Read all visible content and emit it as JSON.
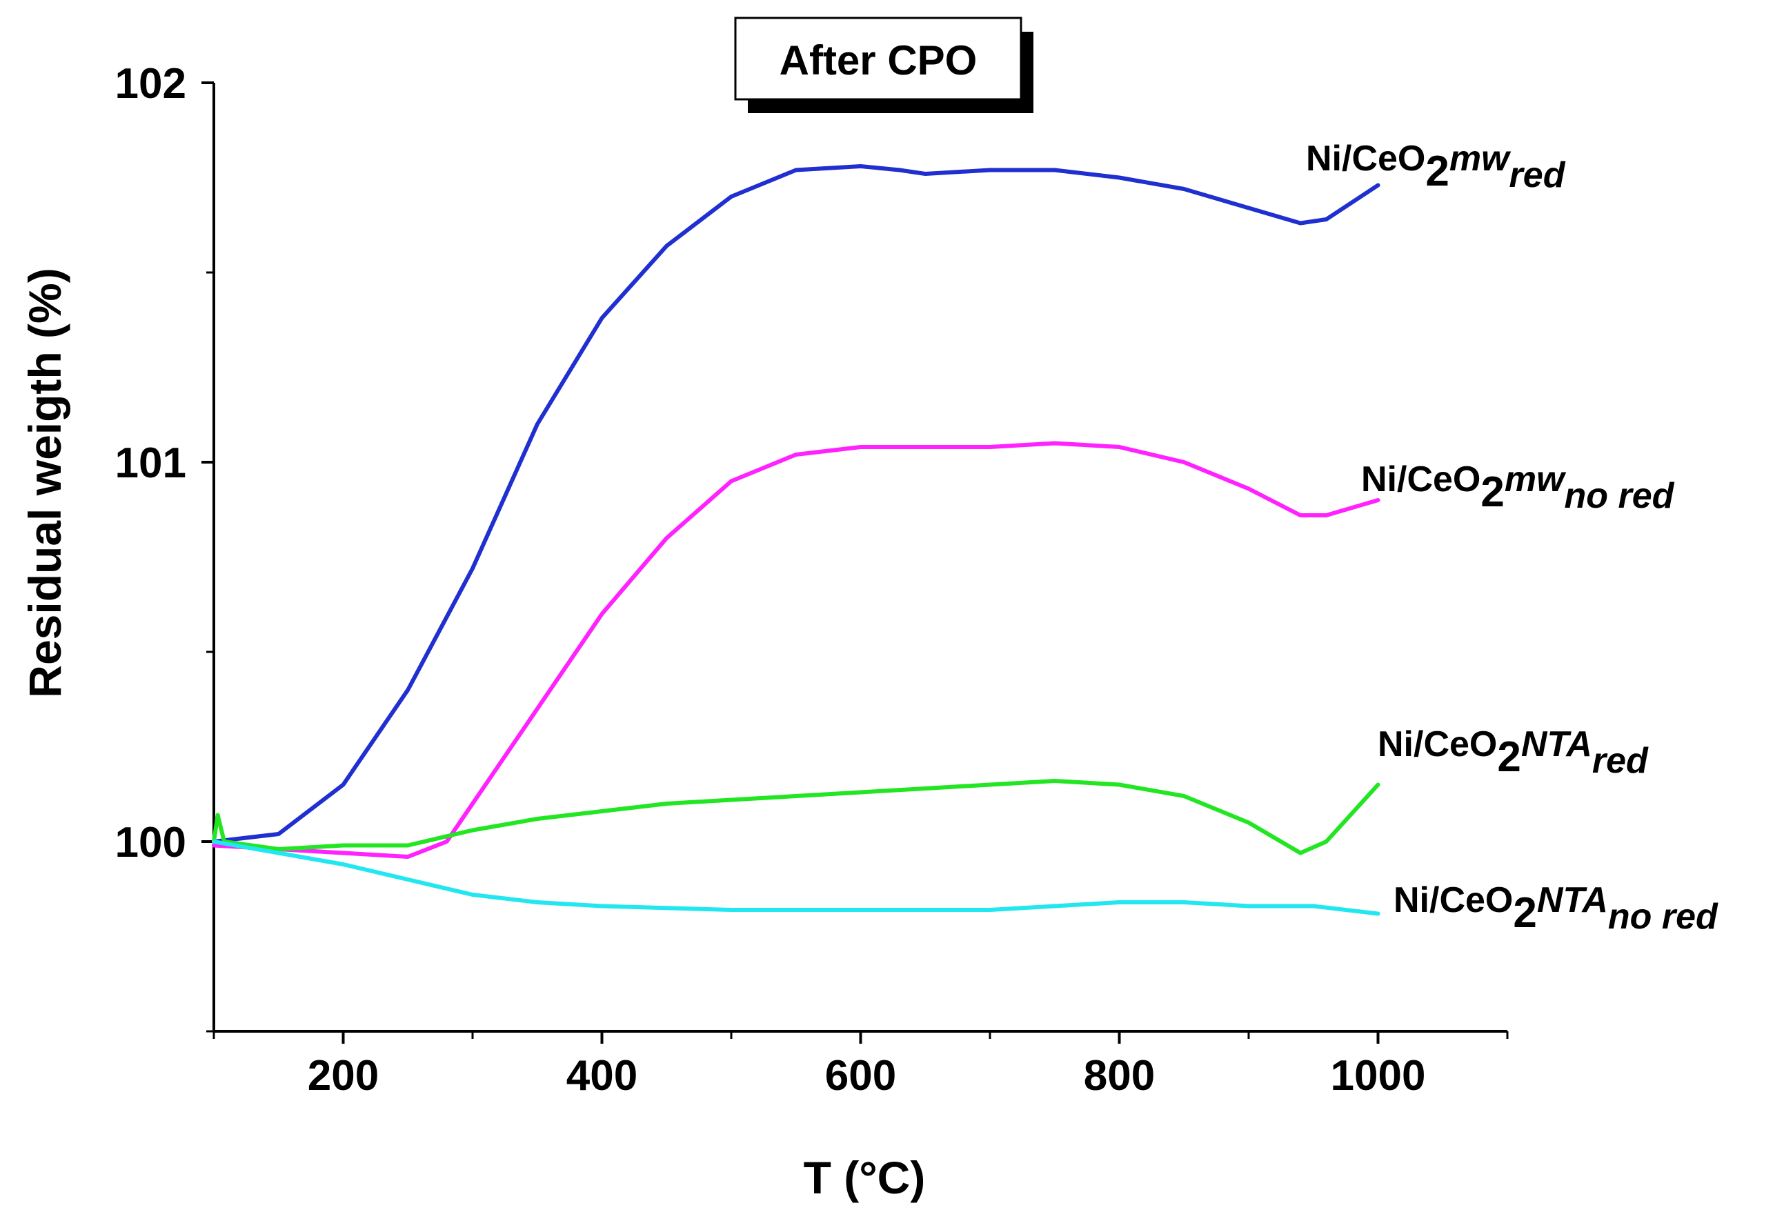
{
  "chart_data": {
    "type": "line",
    "title": "After CPO",
    "xlabel": "T (°C)",
    "ylabel": "Residual weigth (%)",
    "xlim": [
      100,
      1100
    ],
    "ylim": [
      99.5,
      102
    ],
    "x_ticks": [
      200,
      400,
      600,
      800,
      1000
    ],
    "x_tick_labels": [
      "200",
      "400",
      "600",
      "800",
      "1000"
    ],
    "y_ticks": [
      100,
      101,
      102
    ],
    "y_tick_labels": [
      "100",
      "101",
      "102"
    ],
    "grid": false,
    "legend_placement": "right of curves (inline labels)",
    "series": [
      {
        "name": "Ni/CeO2mw red",
        "label": {
          "base": "Ni/CeO",
          "sub": "2",
          "italic": "mw",
          "italic_sub": "red"
        },
        "color": "#1f2fd0",
        "x": [
          100,
          150,
          200,
          250,
          300,
          350,
          400,
          450,
          500,
          550,
          600,
          630,
          650,
          700,
          750,
          800,
          850,
          900,
          940,
          960,
          1000
        ],
        "y": [
          100.0,
          100.02,
          100.15,
          100.4,
          100.72,
          101.1,
          101.38,
          101.57,
          101.7,
          101.77,
          101.78,
          101.77,
          101.76,
          101.77,
          101.77,
          101.75,
          101.72,
          101.67,
          101.63,
          101.64,
          101.73
        ]
      },
      {
        "name": "Ni/CeO2mw no red",
        "label": {
          "base": "Ni/CeO",
          "sub": "2",
          "italic": "mw",
          "italic_sub": "no red"
        },
        "color": "#ff22ff",
        "x": [
          100,
          150,
          200,
          250,
          280,
          300,
          350,
          400,
          450,
          500,
          550,
          600,
          650,
          700,
          750,
          800,
          850,
          900,
          940,
          960,
          1000
        ],
        "y": [
          99.99,
          99.98,
          99.97,
          99.96,
          100.0,
          100.1,
          100.35,
          100.6,
          100.8,
          100.95,
          101.02,
          101.04,
          101.04,
          101.04,
          101.05,
          101.04,
          101.0,
          100.93,
          100.86,
          100.86,
          100.9
        ]
      },
      {
        "name": "Ni/CeO2NTA red",
        "label": {
          "base": "Ni/CeO",
          "sub": "2",
          "italic": "NTA",
          "italic_sub": "red"
        },
        "color": "#22e622",
        "x": [
          100,
          103,
          108,
          150,
          200,
          250,
          300,
          350,
          400,
          450,
          500,
          550,
          600,
          650,
          700,
          750,
          800,
          850,
          900,
          940,
          960,
          1000
        ],
        "y": [
          100.0,
          100.07,
          100.0,
          99.98,
          99.99,
          99.99,
          100.03,
          100.06,
          100.08,
          100.1,
          100.11,
          100.12,
          100.13,
          100.14,
          100.15,
          100.16,
          100.15,
          100.12,
          100.05,
          99.97,
          100.0,
          100.15
        ]
      },
      {
        "name": "Ni/CeO2NTA no red",
        "label": {
          "base": "Ni/CeO",
          "sub": "2",
          "italic": "NTA",
          "italic_sub": "no red"
        },
        "color": "#22e6f0",
        "x": [
          100,
          150,
          200,
          250,
          300,
          350,
          400,
          500,
          600,
          700,
          750,
          800,
          850,
          900,
          950,
          1000
        ],
        "y": [
          100.0,
          99.97,
          99.94,
          99.9,
          99.86,
          99.84,
          99.83,
          99.82,
          99.82,
          99.82,
          99.83,
          99.84,
          99.84,
          99.83,
          99.83,
          99.81
        ]
      }
    ]
  }
}
